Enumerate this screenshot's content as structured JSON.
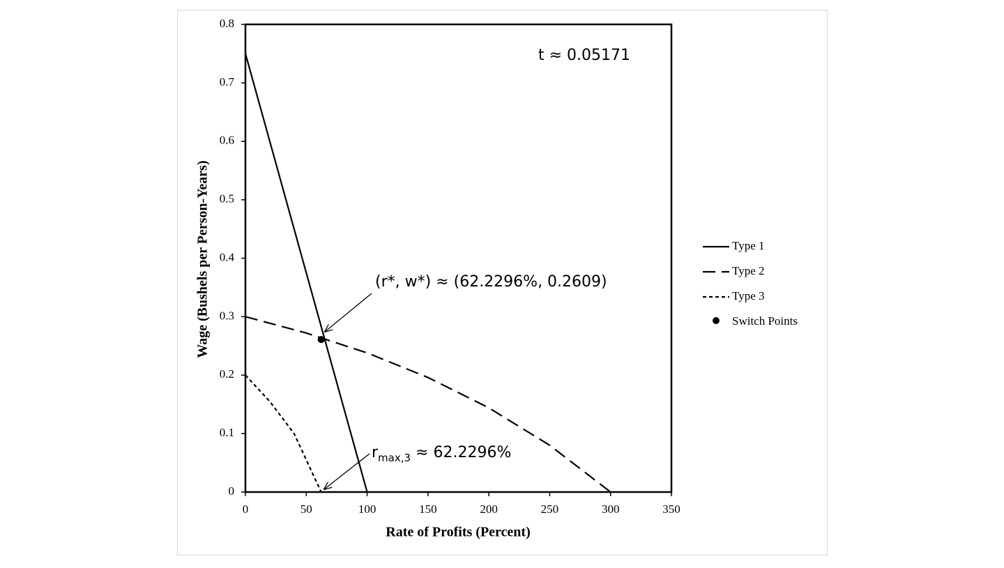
{
  "chart_data": {
    "type": "line",
    "xlabel": "Rate of Profits (Percent)",
    "ylabel": "Wage (Bushels per Person-Years)",
    "xlim": [
      0,
      350
    ],
    "xticks": [
      0,
      50,
      100,
      150,
      200,
      250,
      300,
      350
    ],
    "ylim": [
      0,
      0.8
    ],
    "yticks": [
      0,
      0.1,
      0.2,
      0.3,
      0.4,
      0.5,
      0.6,
      0.7,
      0.8
    ],
    "grid": false,
    "legend": "right",
    "series": [
      {
        "name": "Type 1",
        "color": "#000000",
        "dash": "solid",
        "x": [
          0,
          100
        ],
        "values": [
          0.75,
          0
        ]
      },
      {
        "name": "Type 2",
        "color": "#000000",
        "dash": "long",
        "x": [
          0,
          50,
          100,
          150,
          200,
          250,
          300
        ],
        "values": [
          0.3,
          0.272,
          0.238,
          0.196,
          0.144,
          0.08,
          0
        ]
      },
      {
        "name": "Type 3",
        "color": "#000000",
        "dash": "short",
        "x": [
          0,
          20,
          40,
          62.2296
        ],
        "values": [
          0.2,
          0.155,
          0.1,
          0
        ]
      }
    ],
    "points": {
      "name": "Switch Points",
      "color": "#000000",
      "x": [
        62.2296
      ],
      "values": [
        0.2609
      ]
    },
    "annotations": {
      "t": "t ≈ 0.05171",
      "switch": "(r*, w*) ≈ (62.2296%, 0.2609)",
      "rmax_main": "r",
      "rmax_sub": "max,3",
      "rmax_rest": " ≈ 62.2296%"
    }
  }
}
